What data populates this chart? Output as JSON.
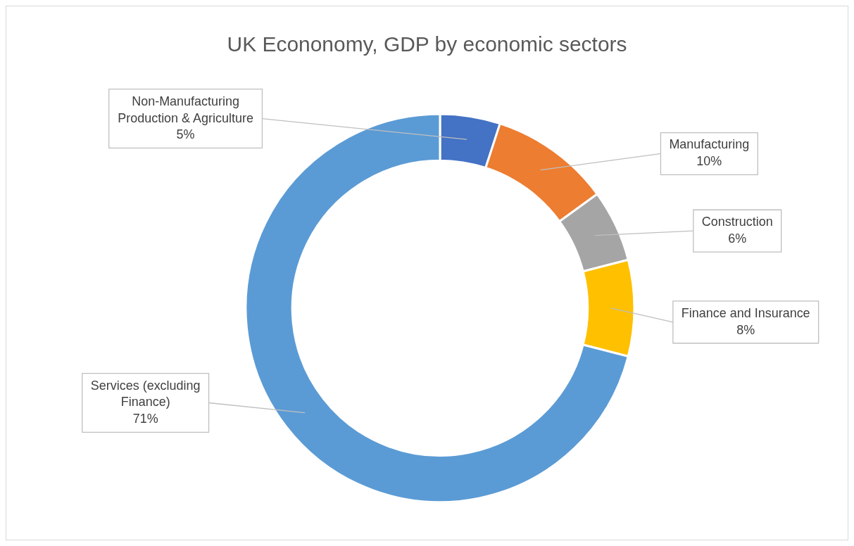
{
  "chart_data": {
    "type": "donut",
    "title": "UK Econonomy, GDP by economic sectors",
    "categories": [
      "Non-Manufacturing Production & Agriculture",
      "Manufacturing",
      "Construction",
      "Finance and Insurance",
      "Services (excluding Finance)"
    ],
    "values": [
      5,
      10,
      6,
      8,
      71
    ],
    "colors": [
      "#4472c4",
      "#ed7d31",
      "#a5a5a5",
      "#ffc000",
      "#5b9bd5"
    ],
    "value_labels": [
      "5%",
      "10%",
      "6%",
      "8%",
      "71%"
    ],
    "legend": false
  }
}
